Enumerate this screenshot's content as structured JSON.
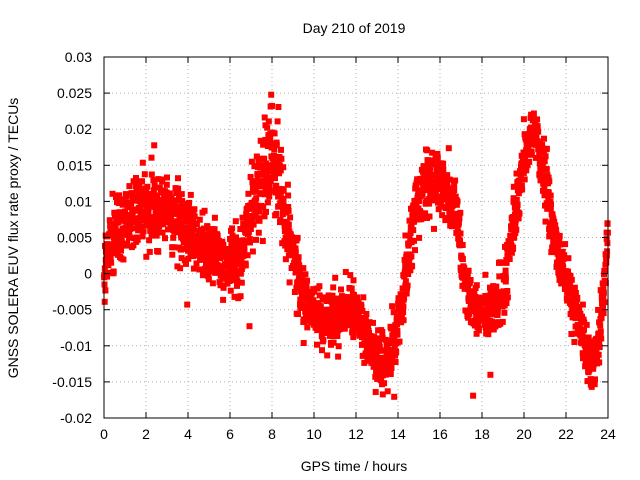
{
  "chart_data": {
    "type": "scatter",
    "title": "Day 210 of 2019",
    "xlabel": "GPS time / hours",
    "ylabel": "GNSS SOLERA EUV flux rate proxy / TECUs",
    "xlim": [
      0,
      24
    ],
    "ylim": [
      -0.02,
      0.03
    ],
    "x_ticks": [
      "0",
      "2",
      "4",
      "6",
      "8",
      "10",
      "12",
      "14",
      "16",
      "18",
      "20",
      "22",
      "24"
    ],
    "y_ticks": [
      "-0.02",
      "-0.015",
      "-0.01",
      "-0.005",
      "0",
      "0.005",
      "0.01",
      "0.015",
      "0.02",
      "0.025",
      "0.03"
    ],
    "grid": true,
    "marker": "square",
    "color": "#ff0000",
    "series": [
      {
        "trend": [
          [
            0.0,
            0.0
          ],
          [
            0.3,
            0.004
          ],
          [
            1.0,
            0.007
          ],
          [
            2.0,
            0.009
          ],
          [
            3.0,
            0.009
          ],
          [
            4.0,
            0.006
          ],
          [
            4.8,
            0.003
          ],
          [
            5.5,
            0.002
          ],
          [
            6.0,
            0.001
          ],
          [
            6.5,
            0.002
          ],
          [
            7.0,
            0.008
          ],
          [
            7.5,
            0.013
          ],
          [
            8.0,
            0.017
          ],
          [
            8.5,
            0.01
          ],
          [
            9.0,
            0.002
          ],
          [
            9.5,
            -0.003
          ],
          [
            10.0,
            -0.005
          ],
          [
            10.5,
            -0.007
          ],
          [
            11.0,
            -0.006
          ],
          [
            11.5,
            -0.005
          ],
          [
            12.0,
            -0.005
          ],
          [
            12.5,
            -0.009
          ],
          [
            13.0,
            -0.012
          ],
          [
            13.3,
            -0.013
          ],
          [
            13.8,
            -0.01
          ],
          [
            14.2,
            -0.003
          ],
          [
            14.7,
            0.007
          ],
          [
            15.2,
            0.013
          ],
          [
            15.7,
            0.013
          ],
          [
            16.3,
            0.011
          ],
          [
            16.8,
            0.007
          ],
          [
            17.2,
            -0.001
          ],
          [
            17.6,
            -0.005
          ],
          [
            18.0,
            -0.005
          ],
          [
            18.5,
            -0.005
          ],
          [
            19.0,
            -0.003
          ],
          [
            19.5,
            0.007
          ],
          [
            20.0,
            0.016
          ],
          [
            20.5,
            0.02
          ],
          [
            21.0,
            0.013
          ],
          [
            21.5,
            0.004
          ],
          [
            22.0,
            -0.001
          ],
          [
            22.5,
            -0.006
          ],
          [
            23.0,
            -0.01
          ],
          [
            23.3,
            -0.013
          ],
          [
            23.6,
            -0.009
          ],
          [
            23.85,
            0.0
          ],
          [
            24.0,
            0.005
          ]
        ],
        "spread": [
          [
            0.0,
            0.0045
          ],
          [
            2.0,
            0.004
          ],
          [
            4.0,
            0.004
          ],
          [
            6.0,
            0.0035
          ],
          [
            7.8,
            0.006
          ],
          [
            10.0,
            0.003
          ],
          [
            13.0,
            0.0035
          ],
          [
            15.5,
            0.004
          ],
          [
            18.0,
            0.003
          ],
          [
            20.3,
            0.004
          ],
          [
            22.5,
            0.003
          ],
          [
            24.0,
            0.003
          ]
        ]
      }
    ]
  }
}
